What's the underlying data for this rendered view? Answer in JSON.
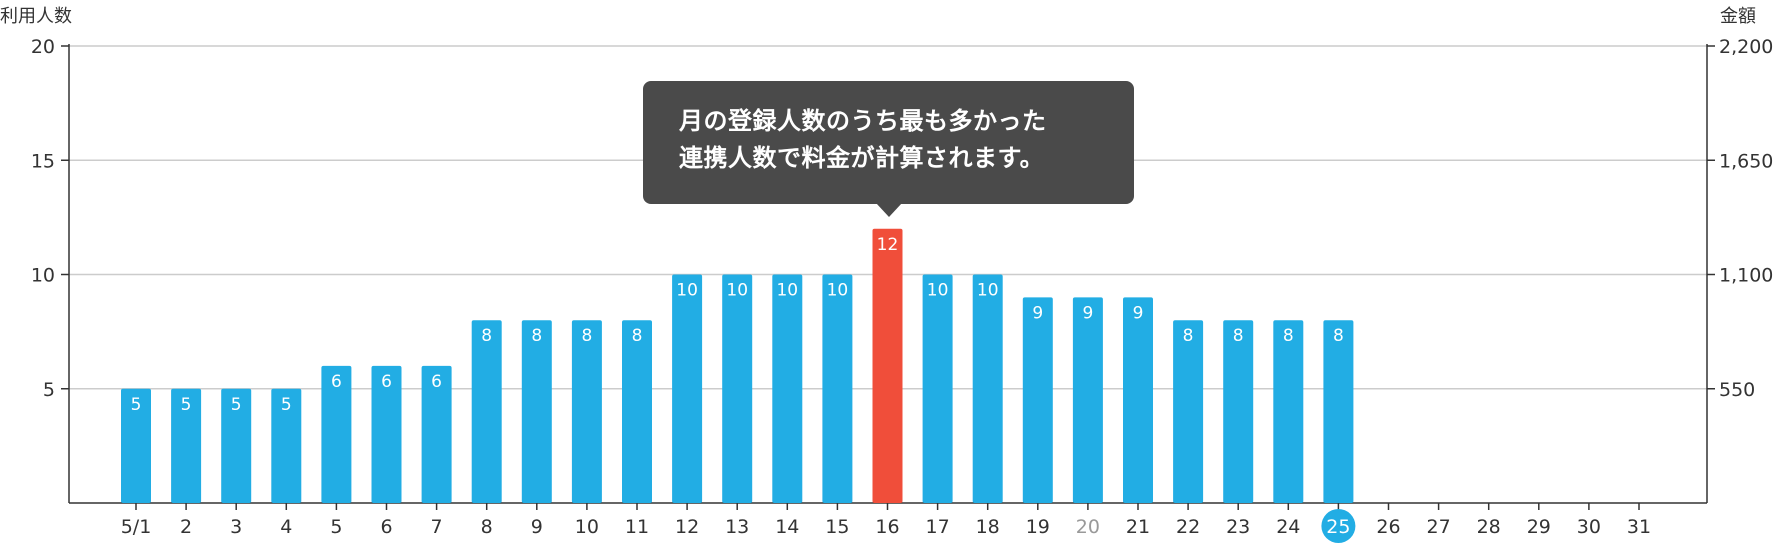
{
  "left_axis_title": "利用人数",
  "right_axis_title": "金額",
  "tooltip": {
    "line1": "月の登録人数のうち最も多かった",
    "line2": "連携人数で料金が計算されます。"
  },
  "colors": {
    "bar": "#22ade4",
    "highlight": "#f04e3a",
    "today": "#22ade4",
    "grid": "#cccccc",
    "axis": "#333333",
    "weekend_label": "#999999"
  },
  "chart_data": {
    "type": "bar",
    "categories": [
      "5/1",
      "2",
      "3",
      "4",
      "5",
      "6",
      "7",
      "8",
      "9",
      "10",
      "11",
      "12",
      "13",
      "14",
      "15",
      "16",
      "17",
      "18",
      "19",
      "20",
      "21",
      "22",
      "23",
      "24",
      "25",
      "26",
      "27",
      "28",
      "29",
      "30",
      "31"
    ],
    "series": [
      {
        "values": [
          5,
          5,
          5,
          5,
          6,
          6,
          6,
          8,
          8,
          8,
          8,
          10,
          10,
          10,
          10,
          12,
          10,
          10,
          9,
          9,
          9,
          8,
          8,
          8,
          8,
          null,
          null,
          null,
          null,
          null,
          null
        ]
      }
    ],
    "y_left": {
      "ticks": [
        "5",
        "10",
        "15",
        "20"
      ],
      "ylim": [
        0,
        20
      ]
    },
    "y_right": {
      "ticks": [
        "550",
        "1,100",
        "1,650",
        "2,200"
      ],
      "ylim": [
        0,
        2200
      ]
    },
    "highlight_category": "16",
    "today_category": "25",
    "gray_category": "20",
    "grid": true
  }
}
